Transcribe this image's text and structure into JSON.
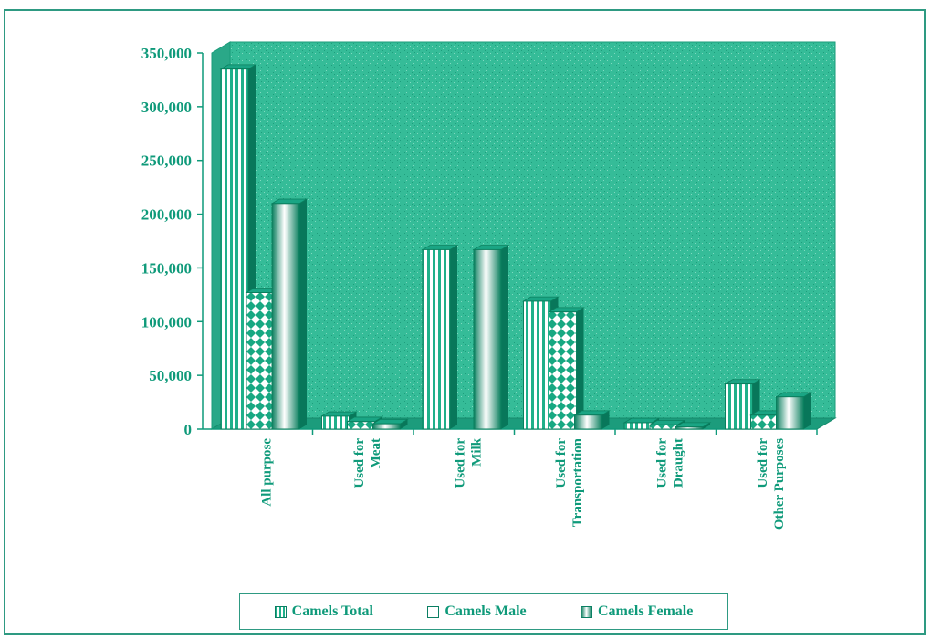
{
  "chart_data": {
    "type": "bar",
    "title": "",
    "xlabel": "",
    "ylabel": "",
    "ylim": [
      0,
      350000
    ],
    "yticks": [
      "0",
      "50,000",
      "100,000",
      "150,000",
      "200,000",
      "250,000",
      "300,000",
      "350,000"
    ],
    "categories": [
      [
        "All purpose"
      ],
      [
        "Used for",
        "Meat"
      ],
      [
        "Used for",
        "Milk"
      ],
      [
        "Used for",
        "Transportation"
      ],
      [
        "Used for",
        "Draught"
      ],
      [
        "Used for",
        "Other Purposes"
      ]
    ],
    "series": [
      {
        "name": "Camels Total",
        "values": [
          335000,
          12000,
          167000,
          119000,
          6000,
          42000
        ],
        "color": "#1fb08a",
        "pattern": "vertical-stripes"
      },
      {
        "name": "Camels Male",
        "values": [
          127000,
          7000,
          0,
          109000,
          4000,
          13000
        ],
        "color": "#1fb08a",
        "pattern": "diamonds"
      },
      {
        "name": "Camels Female",
        "values": [
          210000,
          5000,
          167000,
          13000,
          2000,
          30000
        ],
        "color": "#0b8f6a",
        "pattern": "cylinder-gradient"
      }
    ],
    "grid": false,
    "legend_position": "bottom",
    "plot_background": "#2fb894",
    "text_color": "#0f9a7a"
  }
}
